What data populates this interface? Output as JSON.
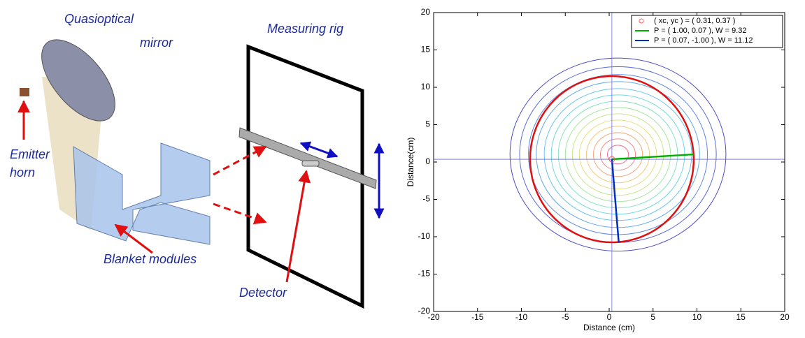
{
  "diagram": {
    "labels": [
      "Quasioptical",
      "mirror",
      "Emitter",
      "horn",
      "Blanket modules",
      "Measuring rig",
      "Detector"
    ]
  },
  "chart_data": {
    "type": "contour",
    "xlabel": "Distance (cm)",
    "ylabel": "Distance(cm)",
    "xlim": [
      -20,
      20
    ],
    "ylim": [
      -20,
      20
    ],
    "xticks": [
      -20,
      -15,
      -10,
      -5,
      0,
      5,
      10,
      15,
      20
    ],
    "yticks": [
      -20,
      -15,
      -10,
      -5,
      0,
      5,
      10,
      15,
      20
    ],
    "contour_center": [
      1,
      1
    ],
    "contours": [
      {
        "radius": 12.3,
        "color": "#4a4ac8"
      },
      {
        "radius": 11.2,
        "color": "#5a6ad8"
      },
      {
        "radius": 10.2,
        "color": "#5f8ae6"
      },
      {
        "radius": 9.3,
        "color": "#62a8ee"
      },
      {
        "radius": 8.4,
        "color": "#66c4f0"
      },
      {
        "radius": 7.6,
        "color": "#6ed8e0"
      },
      {
        "radius": 6.8,
        "color": "#84e2c0"
      },
      {
        "radius": 6.0,
        "color": "#a6e6a0"
      },
      {
        "radius": 5.2,
        "color": "#c8e888"
      },
      {
        "radius": 4.4,
        "color": "#e6e080"
      },
      {
        "radius": 3.6,
        "color": "#f4c878"
      },
      {
        "radius": 2.8,
        "color": "#f6a878"
      },
      {
        "radius": 2.0,
        "color": "#f48a84"
      },
      {
        "radius": 1.2,
        "color": "#ee7090"
      }
    ],
    "series": [
      {
        "name": "( xc, yc ) = (  0.31,   0.37 )",
        "color": "#ff6060",
        "x": 0.31,
        "y": 0.37
      },
      {
        "name": "P = (  1.00,   0.07 ),  W = 9.32",
        "color": "#00b000",
        "px": 1.0,
        "py": 0.07,
        "w": 9.32
      },
      {
        "name": "P = (  0.07,  -1.00 ),  W = 11.12",
        "color": "#0030c0",
        "px": 0.07,
        "py": -1.0,
        "w": 11.12
      }
    ],
    "fit_color": "#e01010",
    "crosshair_color": "#6a6ae0"
  }
}
